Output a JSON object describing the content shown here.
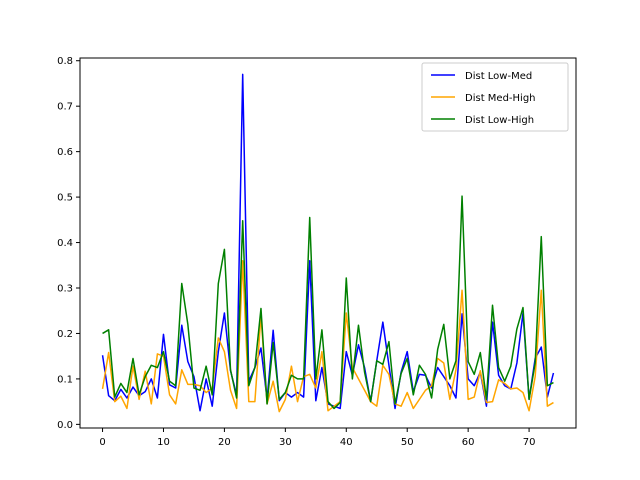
{
  "chart_data": {
    "type": "line",
    "xlim": [
      -3.7,
      77.7
    ],
    "ylim": [
      -0.008,
      0.806
    ],
    "xticks": [
      0,
      10,
      20,
      30,
      40,
      50,
      60,
      70
    ],
    "xtick_labels": [
      "0",
      "10",
      "20",
      "30",
      "40",
      "50",
      "60",
      "70"
    ],
    "yticks": [
      0.0,
      0.1,
      0.2,
      0.3,
      0.4,
      0.5,
      0.6,
      0.7,
      0.8
    ],
    "ytick_labels": [
      "0.0",
      "0.1",
      "0.2",
      "0.3",
      "0.4",
      "0.5",
      "0.6",
      "0.7",
      "0.8"
    ],
    "grid": false,
    "legend_position": "top-right",
    "x": [
      0,
      1,
      2,
      3,
      4,
      5,
      6,
      7,
      8,
      9,
      10,
      11,
      12,
      13,
      14,
      15,
      16,
      17,
      18,
      19,
      20,
      21,
      22,
      23,
      24,
      25,
      26,
      27,
      28,
      29,
      30,
      31,
      32,
      33,
      34,
      35,
      36,
      37,
      38,
      39,
      40,
      41,
      42,
      43,
      44,
      45,
      46,
      47,
      48,
      49,
      50,
      51,
      52,
      53,
      54,
      55,
      56,
      57,
      58,
      59,
      60,
      61,
      62,
      63,
      64,
      65,
      66,
      67,
      68,
      69,
      70,
      71,
      72,
      73,
      74
    ],
    "series": [
      {
        "name": "Dist Low-Med",
        "color": "#0000ff",
        "values": [
          0.152,
          0.063,
          0.052,
          0.077,
          0.058,
          0.082,
          0.063,
          0.072,
          0.1,
          0.058,
          0.198,
          0.087,
          0.08,
          0.218,
          0.138,
          0.105,
          0.03,
          0.1,
          0.04,
          0.16,
          0.245,
          0.118,
          0.065,
          0.77,
          0.095,
          0.125,
          0.168,
          0.055,
          0.207,
          0.052,
          0.07,
          0.06,
          0.07,
          0.06,
          0.36,
          0.052,
          0.125,
          0.045,
          0.04,
          0.035,
          0.16,
          0.108,
          0.175,
          0.125,
          0.05,
          0.14,
          0.225,
          0.13,
          0.035,
          0.115,
          0.16,
          0.072,
          0.11,
          0.108,
          0.08,
          0.125,
          0.105,
          0.085,
          0.058,
          0.243,
          0.1,
          0.085,
          0.115,
          0.04,
          0.225,
          0.108,
          0.085,
          0.078,
          0.135,
          0.245,
          0.055,
          0.145,
          0.17,
          0.06,
          0.113
        ]
      },
      {
        "name": "Dist Med-High",
        "color": "#ffa500",
        "values": [
          0.078,
          0.158,
          0.05,
          0.062,
          0.035,
          0.128,
          0.055,
          0.117,
          0.045,
          0.155,
          0.15,
          0.065,
          0.045,
          0.12,
          0.088,
          0.088,
          0.085,
          0.07,
          0.08,
          0.19,
          0.16,
          0.075,
          0.035,
          0.36,
          0.05,
          0.05,
          0.24,
          0.045,
          0.095,
          0.028,
          0.055,
          0.128,
          0.05,
          0.105,
          0.11,
          0.08,
          0.16,
          0.03,
          0.04,
          0.05,
          0.245,
          0.125,
          0.1,
          0.075,
          0.05,
          0.04,
          0.13,
          0.11,
          0.045,
          0.04,
          0.07,
          0.035,
          0.055,
          0.075,
          0.085,
          0.145,
          0.135,
          0.055,
          0.12,
          0.295,
          0.055,
          0.06,
          0.118,
          0.048,
          0.05,
          0.098,
          0.09,
          0.078,
          0.08,
          0.07,
          0.03,
          0.105,
          0.295,
          0.04,
          0.048
        ]
      },
      {
        "name": "Dist Low-High",
        "color": "#008000",
        "values": [
          0.2,
          0.208,
          0.06,
          0.09,
          0.07,
          0.145,
          0.065,
          0.105,
          0.13,
          0.125,
          0.16,
          0.095,
          0.085,
          0.31,
          0.22,
          0.08,
          0.075,
          0.128,
          0.065,
          0.31,
          0.385,
          0.12,
          0.058,
          0.448,
          0.085,
          0.125,
          0.255,
          0.045,
          0.18,
          0.055,
          0.07,
          0.108,
          0.1,
          0.1,
          0.455,
          0.1,
          0.208,
          0.05,
          0.035,
          0.048,
          0.322,
          0.1,
          0.218,
          0.115,
          0.05,
          0.14,
          0.132,
          0.182,
          0.045,
          0.112,
          0.145,
          0.065,
          0.13,
          0.11,
          0.058,
          0.165,
          0.22,
          0.1,
          0.14,
          0.502,
          0.138,
          0.11,
          0.158,
          0.055,
          0.262,
          0.125,
          0.095,
          0.128,
          0.21,
          0.257,
          0.055,
          0.135,
          0.413,
          0.085,
          0.092
        ]
      }
    ]
  }
}
